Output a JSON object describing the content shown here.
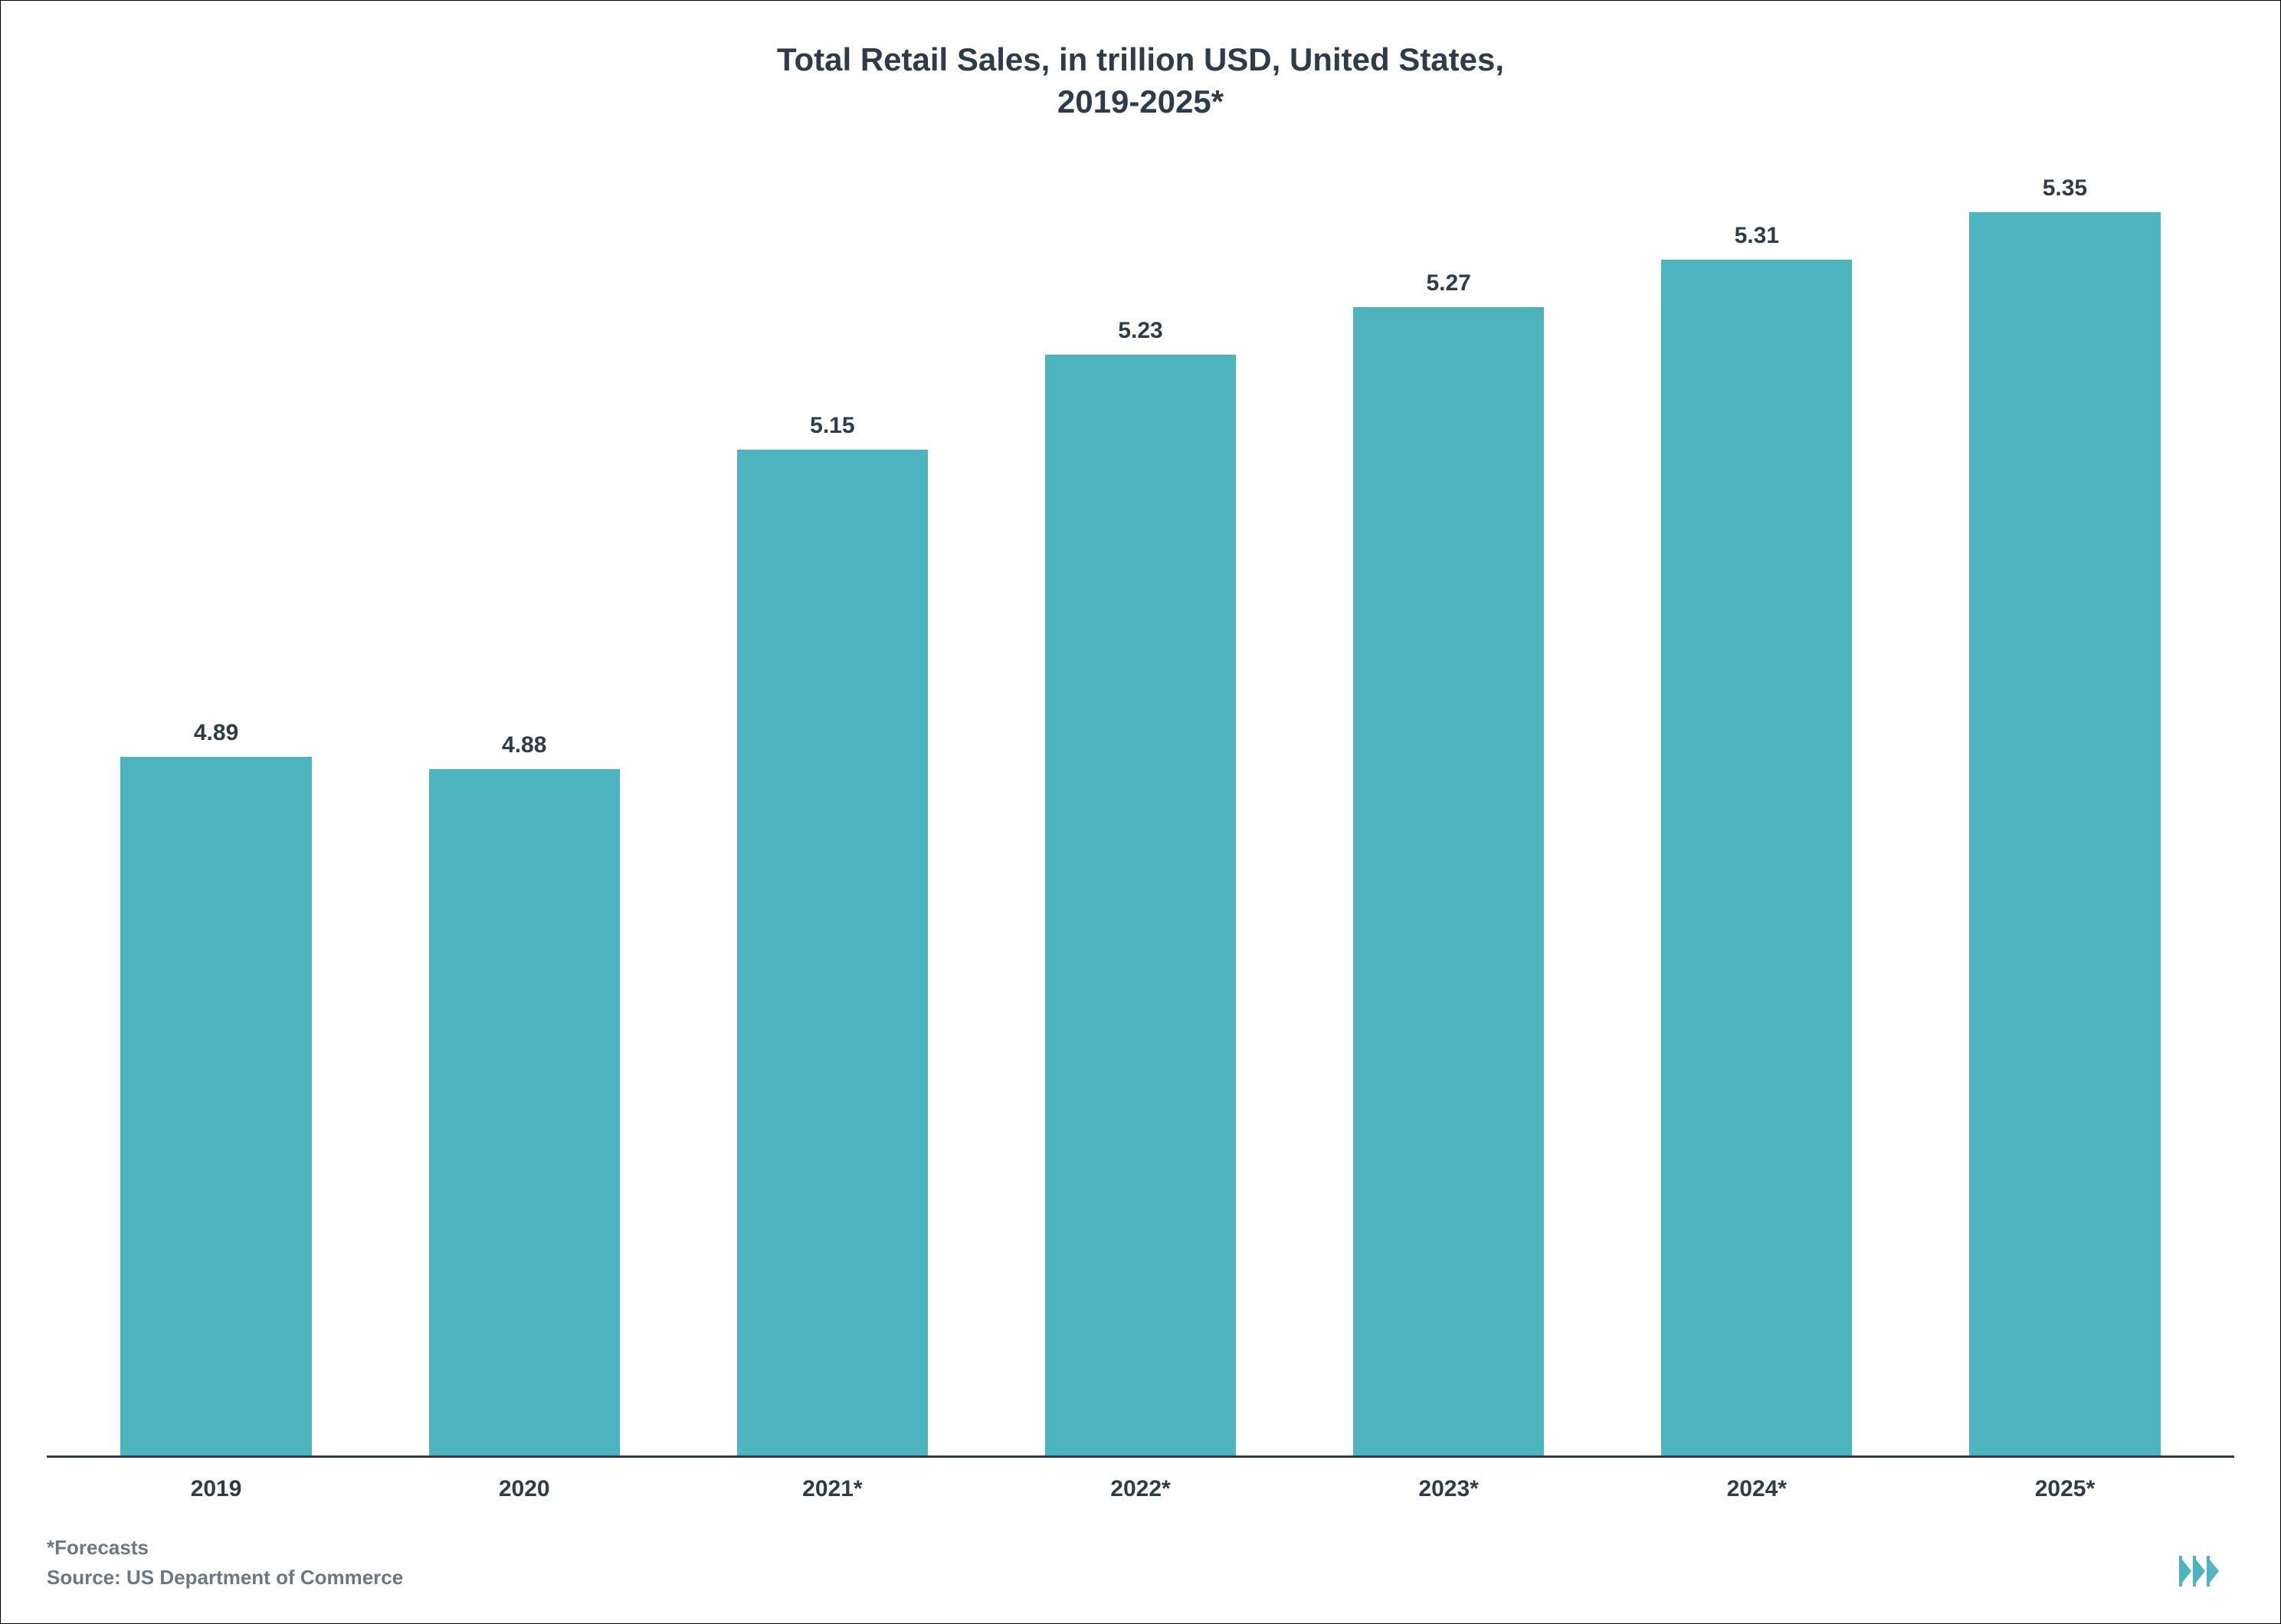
{
  "chart": {
    "type": "bar",
    "title": "Total Retail Sales, in trillion USD, United States,\n2019-2025*",
    "title_fontsize": 42,
    "title_color": "#2e3c4a",
    "categories": [
      "2019",
      "2020",
      "2021*",
      "2022*",
      "2023*",
      "2024*",
      "2025*"
    ],
    "values": [
      4.89,
      4.88,
      5.15,
      5.23,
      5.27,
      5.31,
      5.35
    ],
    "value_labels": [
      "4.89",
      "4.88",
      "5.15",
      "5.23",
      "5.27",
      "5.31",
      "5.35"
    ],
    "bar_color": "#4db3bf",
    "bar_width": 0.62,
    "background_color": "#ffffff",
    "border_color": "#000000",
    "axis_line_color": "#2e3c4a",
    "label_fontsize": 30,
    "label_color": "#2e3c4a",
    "value_fontsize": 30,
    "value_color": "#2e3c4a",
    "ylim": [
      4.3,
      5.4
    ],
    "footer_note": "*Forecasts",
    "footer_source": "Source: US Department of Commerce",
    "footer_fontsize": 26,
    "footer_color": "#6a7885",
    "logo_color": "#4db3bf"
  }
}
